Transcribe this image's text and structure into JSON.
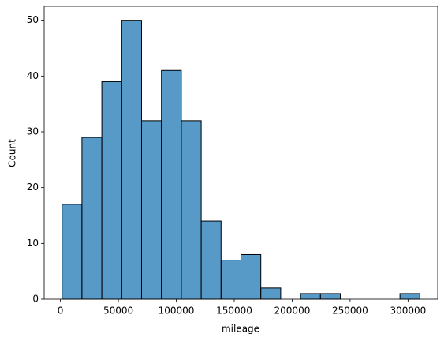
{
  "chart_data": {
    "type": "histogram",
    "xlabel": "mileage",
    "ylabel": "Count",
    "bins": [
      1400,
      18555,
      35710,
      52865,
      70020,
      87175,
      104330,
      121485,
      138640,
      155795,
      172950,
      190105,
      207260,
      224415,
      241570,
      258725,
      275880,
      293035,
      310190
    ],
    "counts": [
      17,
      29,
      39,
      50,
      32,
      41,
      32,
      14,
      7,
      8,
      2,
      0,
      1,
      1,
      0,
      0,
      0,
      1
    ],
    "color": "#1f77b4",
    "xlim": [
      -14040,
      325630
    ],
    "xticks": [
      0,
      50000,
      100000,
      150000,
      200000,
      250000,
      300000
    ],
    "ylim": [
      0,
      52.5
    ],
    "yticks": [
      0,
      10,
      20,
      30,
      40,
      50
    ]
  }
}
